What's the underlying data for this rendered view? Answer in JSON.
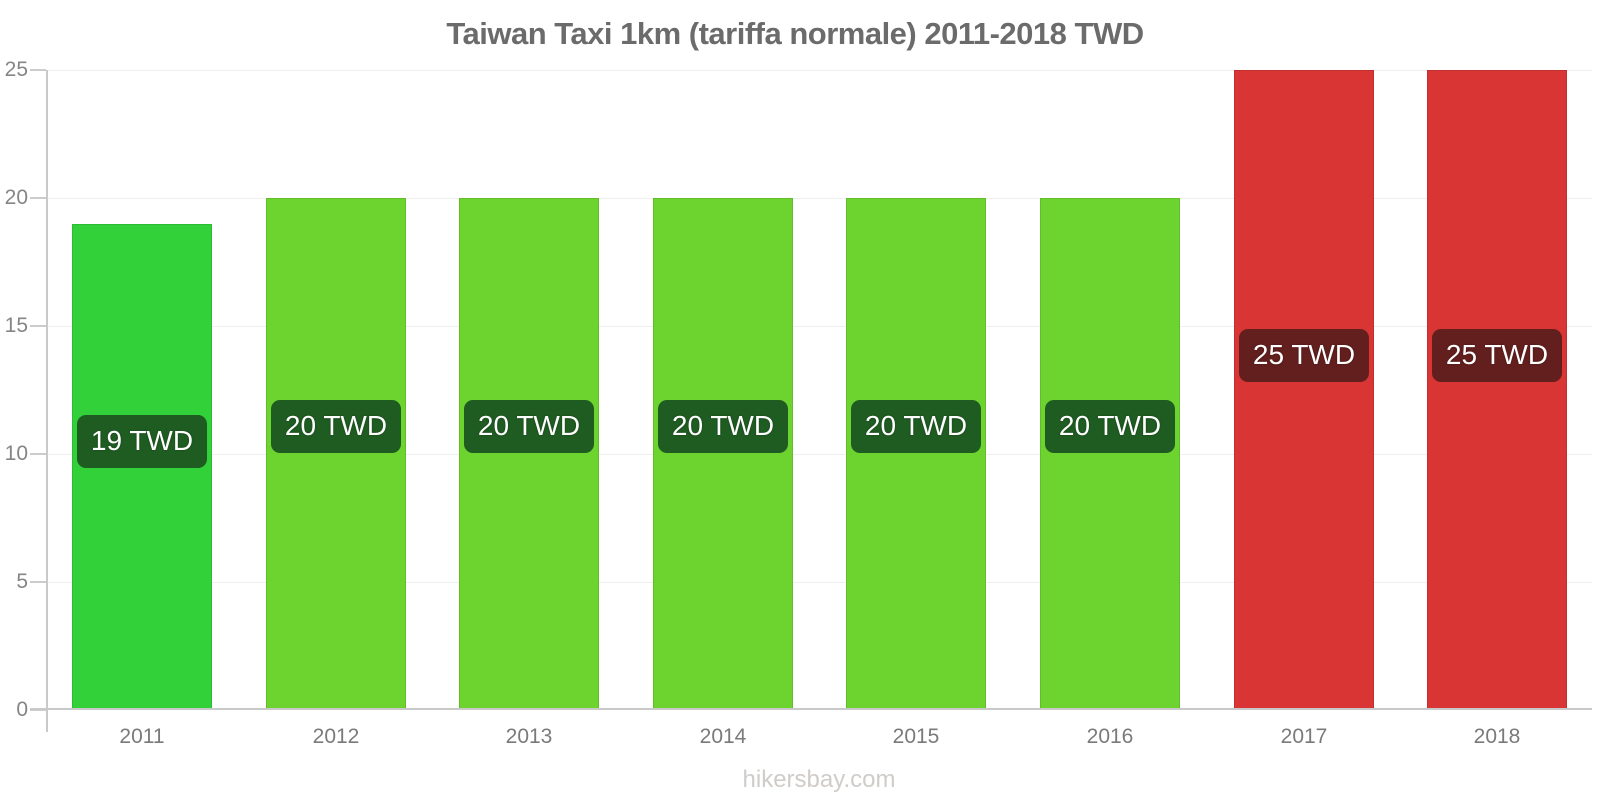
{
  "chart_data": {
    "type": "bar",
    "title": "Taiwan Taxi 1km (tariffa normale) 2011-2018 TWD",
    "source": "hikersbay.com",
    "unit": "TWD",
    "categories": [
      "2011",
      "2012",
      "2013",
      "2014",
      "2015",
      "2016",
      "2017",
      "2018"
    ],
    "values": [
      19,
      20,
      20,
      20,
      20,
      20,
      25,
      25
    ],
    "bar_labels": [
      "19 TWD",
      "20 TWD",
      "20 TWD",
      "20 TWD",
      "20 TWD",
      "20 TWD",
      "25 TWD",
      "25 TWD"
    ],
    "bar_colors": [
      "#32d13a",
      "#6cd32f",
      "#6cd32f",
      "#6cd32f",
      "#6cd32f",
      "#6cd32f",
      "#d93534",
      "#d93534"
    ],
    "label_bg_colors": [
      "#1f5c22",
      "#1f5c22",
      "#1f5c22",
      "#1f5c22",
      "#1f5c22",
      "#1f5c22",
      "#621f1e",
      "#621f1e"
    ],
    "ylabel": "",
    "xlabel": "",
    "ylim": [
      0,
      25
    ],
    "yticks": [
      0,
      5,
      10,
      15,
      20,
      25
    ],
    "grid": "horizontal",
    "legend": "none"
  }
}
